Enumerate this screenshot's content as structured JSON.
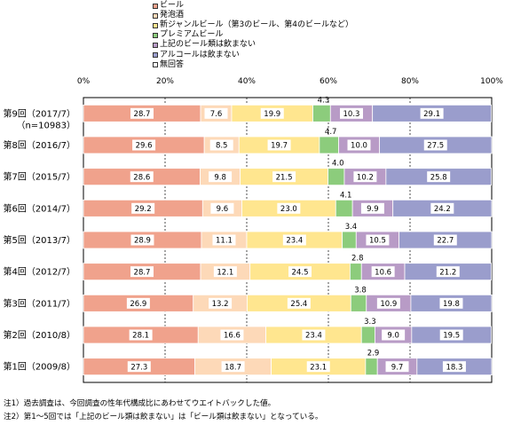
{
  "chart_data": {
    "type": "bar",
    "orientation": "horizontal",
    "stacked": "percent",
    "legend_position": "top",
    "grid": true,
    "xlim": [
      0,
      100
    ],
    "xticks": [
      "0%",
      "20%",
      "40%",
      "60%",
      "80%",
      "100%"
    ],
    "categories": [
      "第9回（2017/7）\n（n=10983）",
      "第8回（2016/7）",
      "第7回（2015/7）",
      "第6回（2014/7）",
      "第5回（2013/7）",
      "第4回（2012/7）",
      "第3回（2011/7）",
      "第2回（2010/8）",
      "第1回（2009/8）"
    ],
    "series": [
      {
        "name": "ビール",
        "color": "#f0a28c",
        "values": [
          28.7,
          29.6,
          28.6,
          29.2,
          28.9,
          28.7,
          26.9,
          28.1,
          27.3
        ]
      },
      {
        "name": "発泡酒",
        "color": "#fdd9b8",
        "values": [
          7.6,
          8.5,
          9.8,
          9.6,
          11.1,
          12.1,
          13.2,
          16.6,
          18.7
        ]
      },
      {
        "name": "新ジャンルビール（第3のビール、第4のビールなど）",
        "color": "#ffe68f",
        "values": [
          19.9,
          19.7,
          21.5,
          23.0,
          23.4,
          24.5,
          25.4,
          23.4,
          23.1
        ]
      },
      {
        "name": "プレミアムビール",
        "color": "#8ccc7c",
        "values": [
          4.3,
          4.7,
          4.0,
          4.1,
          3.4,
          2.8,
          3.8,
          3.3,
          2.9
        ]
      },
      {
        "name": "上記のビール類は飲まない",
        "color": "#b89bc6",
        "values": [
          10.3,
          10.0,
          10.2,
          9.9,
          10.5,
          10.6,
          10.9,
          9.0,
          9.7
        ]
      },
      {
        "name": "アルコールは飲まない",
        "color": "#9a9dcc",
        "values": [
          29.1,
          27.5,
          25.8,
          24.2,
          22.7,
          21.2,
          19.8,
          19.5,
          18.3
        ]
      },
      {
        "name": "無回答",
        "color": "#ffffff",
        "values": [
          0,
          0,
          0,
          0,
          0,
          0,
          0,
          0,
          0
        ]
      }
    ],
    "labels_above_series": "プレミアムビール"
  },
  "notes": [
    "注1）過去調査は、今回調査の性年代構成比にあわせてウエイトバックした値。",
    "注2）第1～5回では「上記のビール類は飲まない」は「ビール類は飲まない」となっている。"
  ]
}
